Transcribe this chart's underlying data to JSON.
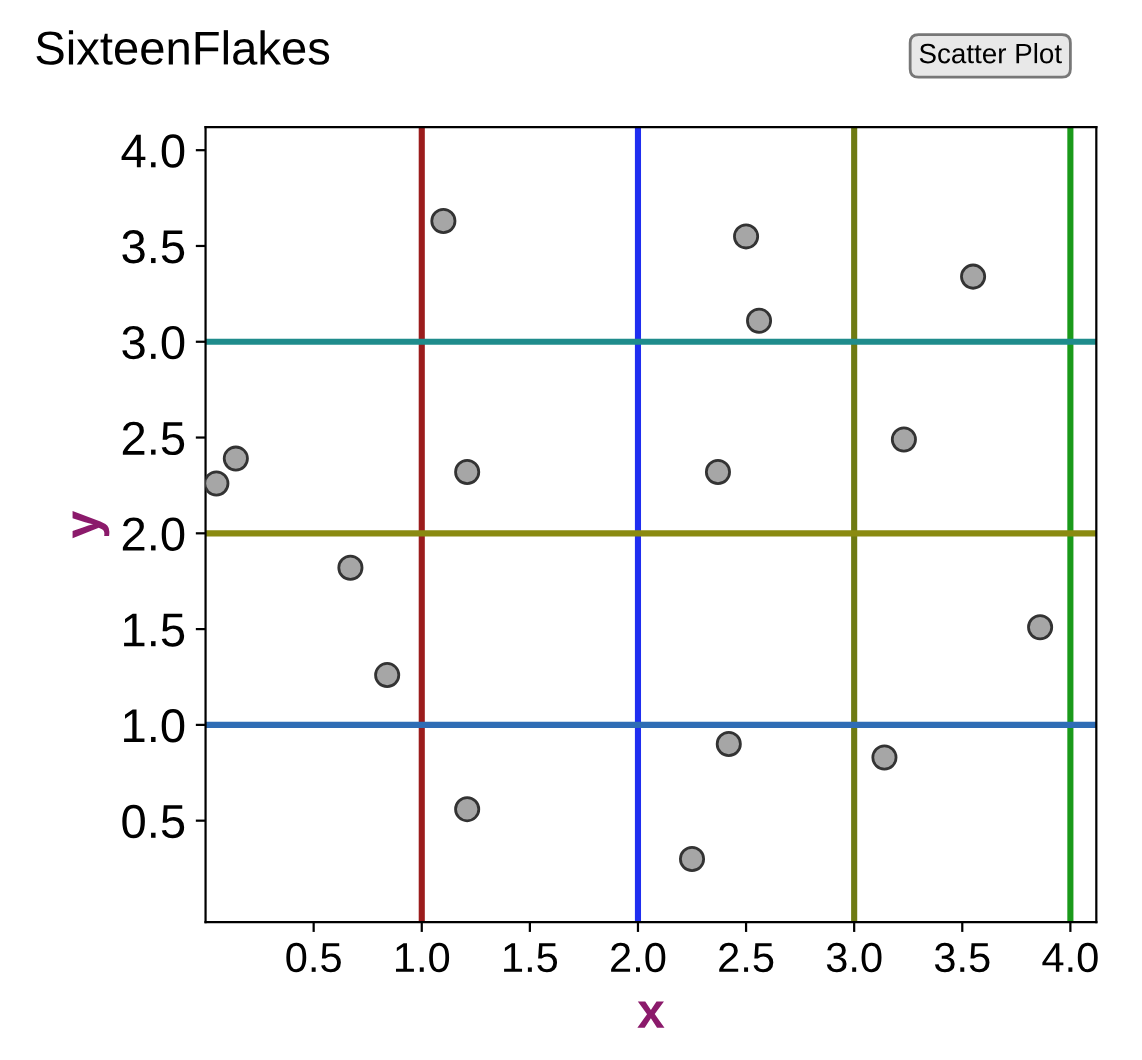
{
  "chart_data": {
    "type": "scatter",
    "title": "SixteenFlakes",
    "xlabel": "x",
    "ylabel": "y",
    "annotations": [
      "Scatter Plot"
    ],
    "x": [
      0.05,
      0.14,
      0.67,
      0.84,
      1.1,
      1.21,
      1.21,
      2.25,
      2.37,
      2.42,
      2.5,
      2.56,
      3.14,
      3.23,
      3.55,
      3.86
    ],
    "series": [
      {
        "color": "#a6a6a6",
        "values": [
          2.26,
          2.39,
          1.82,
          1.26,
          3.63,
          2.32,
          0.56,
          0.3,
          2.32,
          0.9,
          3.55,
          3.11,
          0.83,
          2.49,
          3.34,
          1.51
        ]
      }
    ],
    "marker": "circle",
    "xlim": [
      0,
      4.12
    ],
    "ylim": [
      -0.03,
      4.12
    ],
    "xticks": [
      0.5,
      {
        "value": 1,
        "label": "1.0"
      },
      1.5,
      {
        "value": 2,
        "label": "2.0"
      },
      2.5,
      {
        "value": 3,
        "label": "3.0"
      },
      3.5,
      {
        "value": 4,
        "label": "4.0"
      }
    ],
    "yticks": [
      0.5,
      {
        "value": 1,
        "label": "1.0"
      },
      1.5,
      {
        "value": 2,
        "label": "2.0"
      },
      2.5,
      {
        "value": 3,
        "label": "3.0"
      },
      3.5,
      {
        "value": 4,
        "label": "4.0"
      }
    ],
    "ref_lines": [
      {
        "axis": "x",
        "value": 1,
        "color": "#9b1c1c"
      },
      {
        "axis": "x",
        "value": 2,
        "color": "#1f2ef0"
      },
      {
        "axis": "x",
        "value": 3,
        "color": "#6e7a12"
      },
      {
        "axis": "x",
        "value": 4,
        "color": "#1a9a1a"
      },
      {
        "axis": "y",
        "value": 1,
        "color": "#2f6db5"
      },
      {
        "axis": "y",
        "value": 2,
        "color": "#8a8a10"
      },
      {
        "axis": "y",
        "value": 3,
        "color": "#1f8c8c"
      }
    ],
    "grid": false,
    "legend": false
  }
}
